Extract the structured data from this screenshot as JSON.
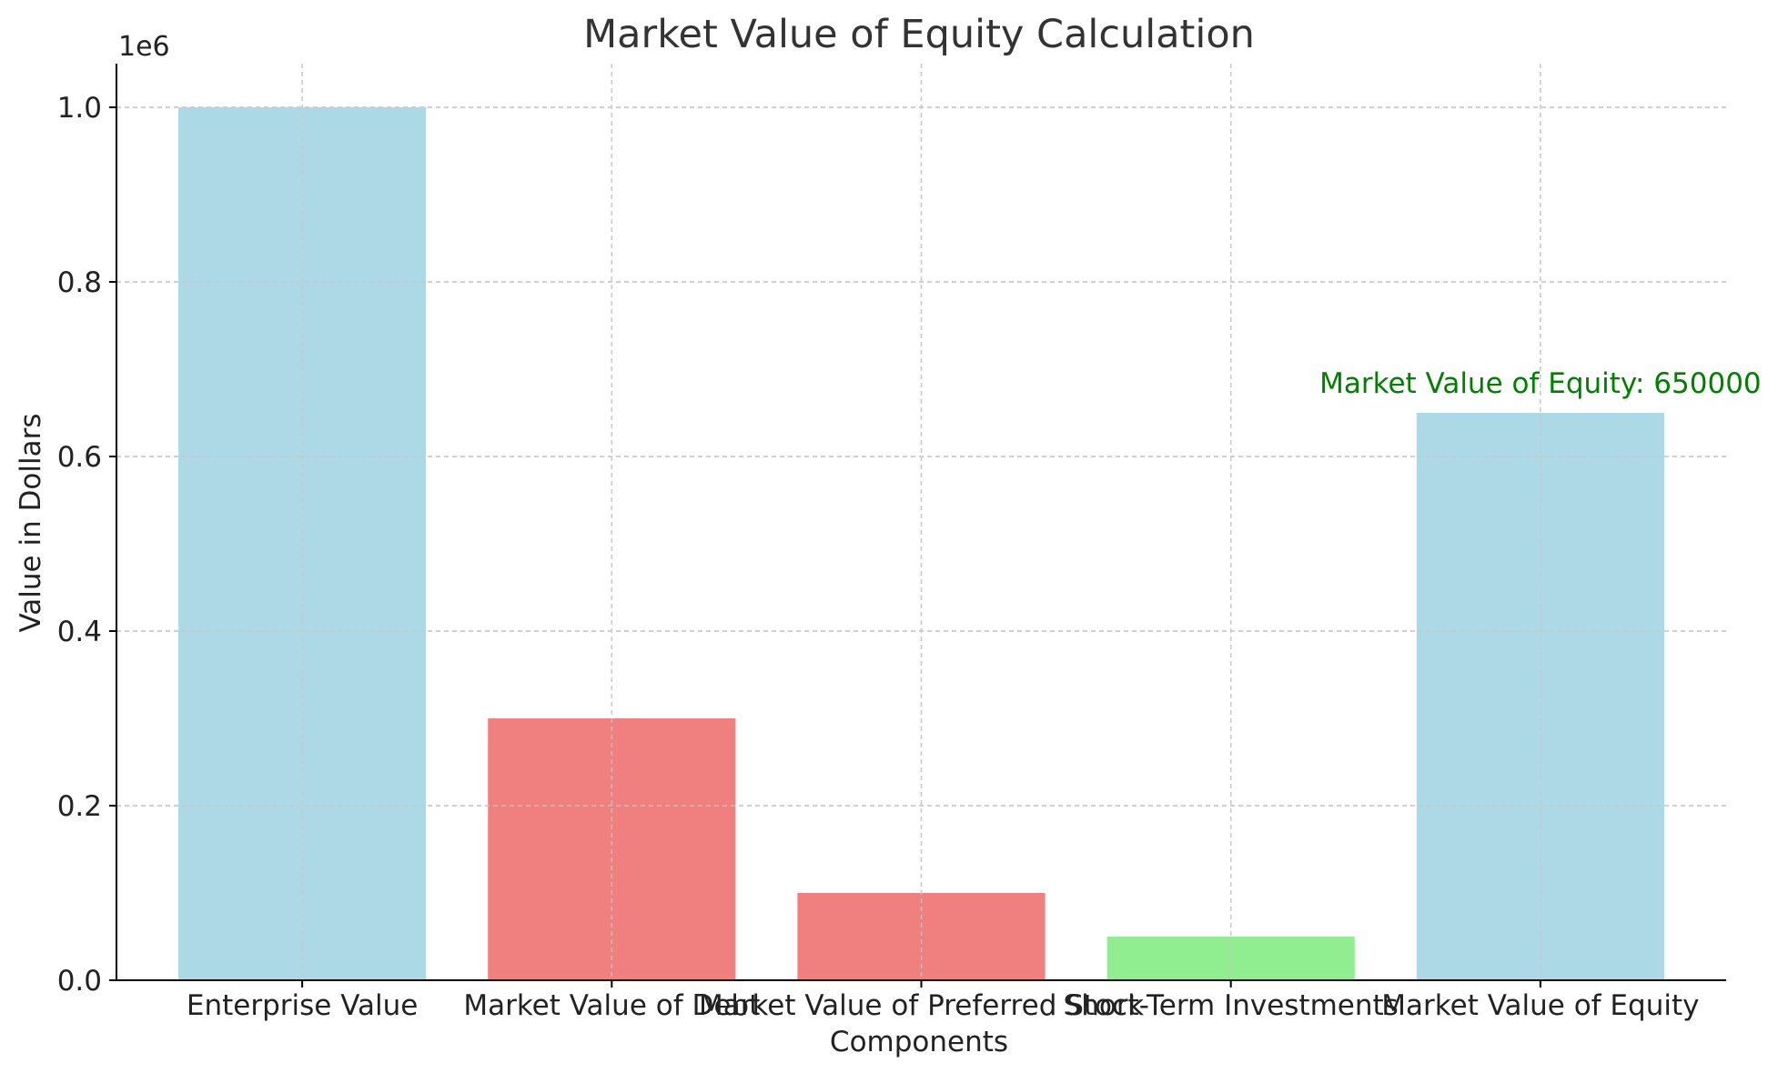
{
  "chart_data": {
    "type": "bar",
    "title": "Market Value of Equity Calculation",
    "xlabel": "Components",
    "ylabel": "Value in Dollars",
    "y_offset_label": "1e6",
    "categories": [
      "Enterprise Value",
      "Market Value of Debt",
      "Market Value of Preferred Stock",
      "Short-Term Investments",
      "Market Value of Equity"
    ],
    "values": [
      1000000,
      300000,
      100000,
      50000,
      650000
    ],
    "bar_colors": [
      "#add8e6",
      "#f08080",
      "#f08080",
      "#90ee90",
      "#add8e6"
    ],
    "ylim": [
      0,
      1050000
    ],
    "y_ticks": [
      0,
      200000,
      400000,
      600000,
      800000,
      1000000
    ],
    "y_tick_labels": [
      "0.0",
      "0.2",
      "0.4",
      "0.6",
      "0.8",
      "1.0"
    ],
    "grid": true,
    "annotation": {
      "text": "Market Value of Equity: 650000",
      "category_index": 4,
      "value": 650000,
      "color": "#008000"
    }
  }
}
